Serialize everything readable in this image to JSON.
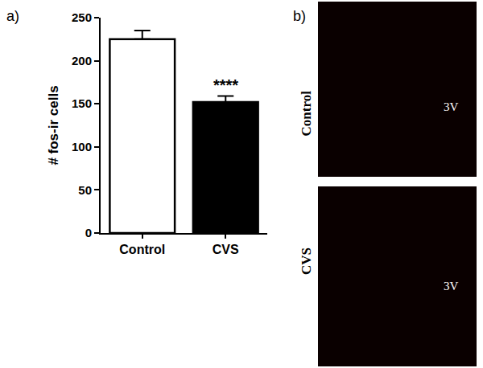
{
  "chart_data": {
    "type": "bar",
    "panel_label": "a)",
    "ylabel": "# fos-ir cells",
    "categories": [
      "Control",
      "CVS"
    ],
    "values": [
      225,
      152
    ],
    "errors": [
      10,
      7
    ],
    "colors": [
      "#ffffff",
      "#000000"
    ],
    "ylim": [
      0,
      250
    ],
    "yticks": [
      0,
      50,
      100,
      150,
      200,
      250
    ],
    "grid": false,
    "annotations": [
      {
        "text": "****",
        "category": "CVS"
      }
    ]
  },
  "image_panel": {
    "panel_label": "b)",
    "images": [
      {
        "label": "Control",
        "region": "3V"
      },
      {
        "label": "CVS",
        "region": "3V"
      }
    ]
  }
}
